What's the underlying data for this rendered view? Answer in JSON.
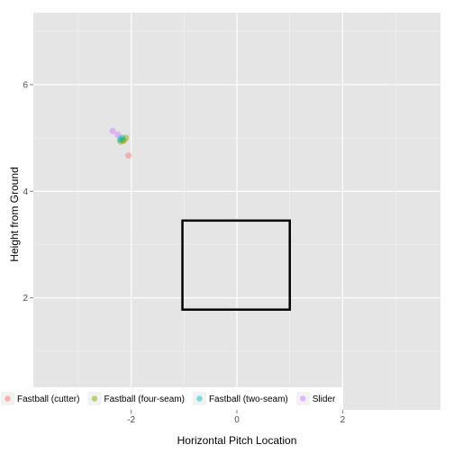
{
  "chart_data": {
    "type": "scatter",
    "title": "",
    "xlabel": "Horizontal Pitch Location",
    "ylabel": "Height from Ground",
    "xlim": [
      -3.85,
      3.85
    ],
    "ylim": [
      -0.1,
      7.35
    ],
    "x_ticks": [
      -2,
      0,
      2
    ],
    "x_tick_labels": [
      "-2",
      "0",
      "2"
    ],
    "y_ticks": [
      2,
      4,
      6
    ],
    "y_tick_labels": [
      "2",
      "4",
      "6"
    ],
    "grid": true,
    "legend_position": "bottom-left",
    "strike_zone": {
      "x": [
        -1.03,
        1.0
      ],
      "y": [
        1.78,
        3.45
      ]
    },
    "series": [
      {
        "name": "Fastball (cutter)",
        "color": "#F8766D",
        "points": [
          [
            -2.05,
            4.67
          ],
          [
            -2.14,
            4.95
          ]
        ]
      },
      {
        "name": "Fastball (four-seam)",
        "color": "#7CAE00",
        "points": [
          [
            -2.2,
            4.93
          ],
          [
            -2.15,
            4.95
          ],
          [
            -2.1,
            5.0
          ],
          [
            -2.18,
            4.97
          ]
        ]
      },
      {
        "name": "Fastball (two-seam)",
        "color": "#00BFC4",
        "points": [
          [
            -2.17,
            5.0
          ],
          [
            -2.21,
            4.97
          ]
        ]
      },
      {
        "name": "Slider",
        "color": "#C77CFF",
        "points": [
          [
            -2.35,
            5.13
          ],
          [
            -2.25,
            5.06
          ]
        ]
      }
    ]
  }
}
